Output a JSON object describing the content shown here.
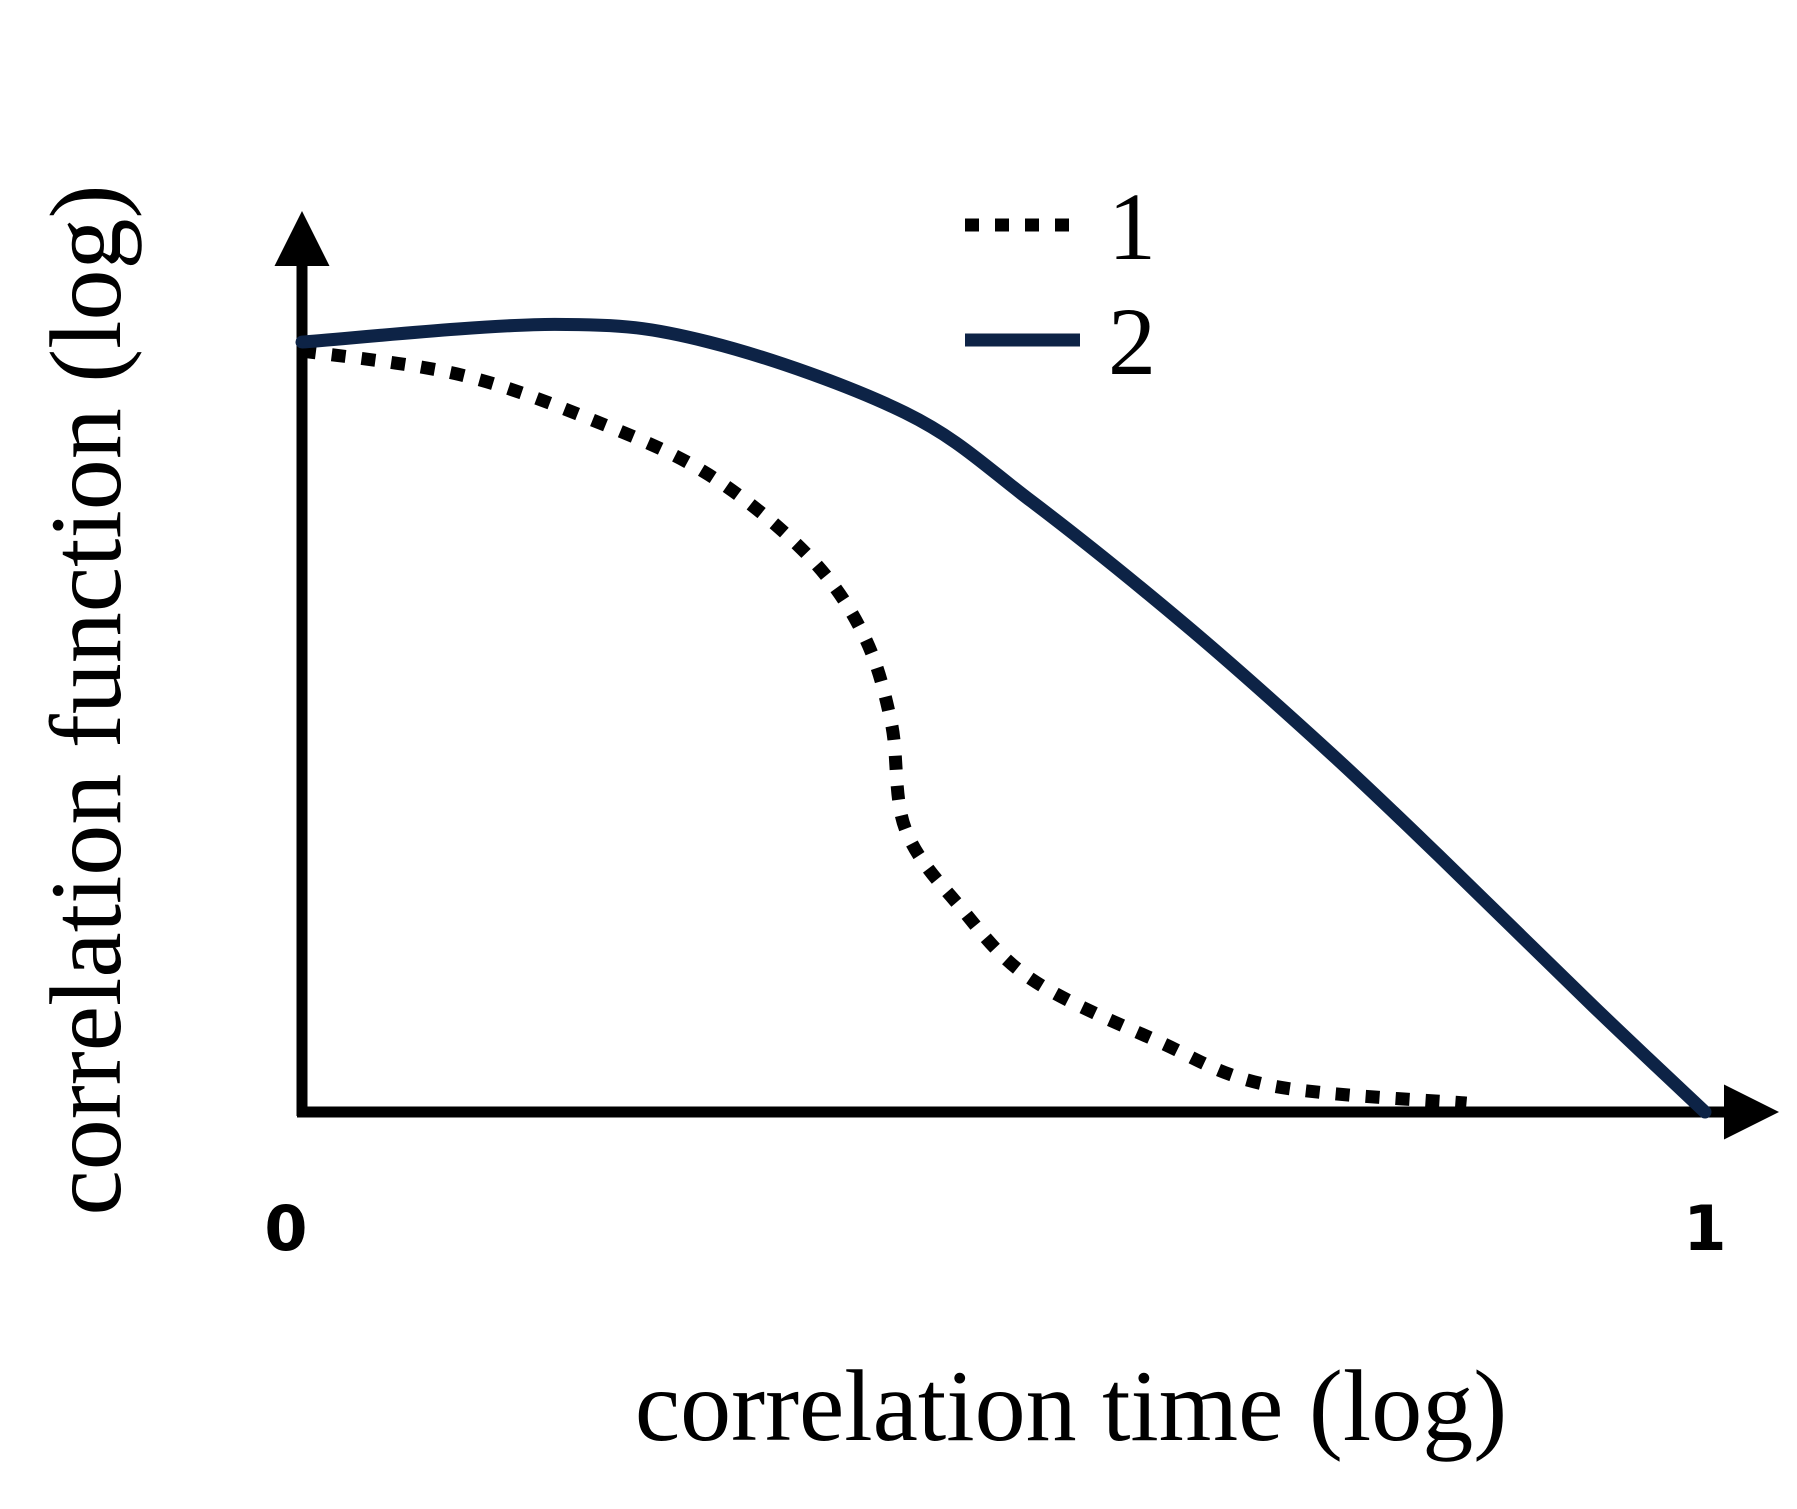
{
  "chart_data": {
    "type": "line",
    "xlabel": "correlation time (log)",
    "ylabel": "correlation function (log)",
    "xlim": [
      0,
      1
    ],
    "ylim": [
      0,
      1
    ],
    "xticks": [
      0,
      1
    ],
    "series": [
      {
        "name": "1",
        "color": "#000000",
        "style": "dotted",
        "x": [
          0,
          0.113,
          0.21,
          0.29,
          0.36,
          0.4,
          0.42,
          0.43,
          0.47,
          0.52,
          0.61,
          0.69,
          0.83
        ],
        "values": [
          0.86,
          0.833,
          0.78,
          0.72,
          0.63,
          0.54,
          0.44,
          0.32,
          0.23,
          0.15,
          0.08,
          0.03,
          0.01
        ]
      },
      {
        "name": "2",
        "color": "#0d2346",
        "style": "solid",
        "x": [
          0,
          0.18,
          0.29,
          0.43,
          0.52,
          0.63,
          0.73,
          0.81,
          0.92,
          1
        ],
        "values": [
          0.87,
          0.89,
          0.87,
          0.79,
          0.69,
          0.55,
          0.41,
          0.29,
          0.12,
          0
        ]
      }
    ]
  }
}
